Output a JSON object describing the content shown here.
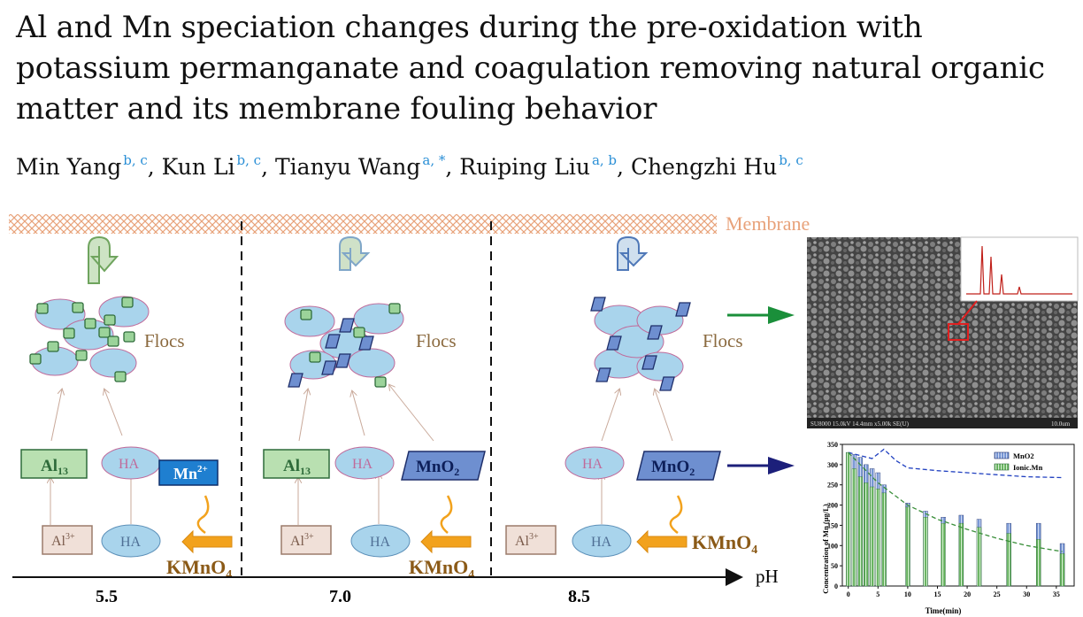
{
  "paper": {
    "title": "Al and Mn speciation changes during the pre-oxidation with potassium permanganate and coagulation removing natural organic matter and its membrane fouling behavior",
    "authors": [
      {
        "name": "Min Yang",
        "affil": "b, c"
      },
      {
        "name": "Kun Li",
        "affil": "b, c"
      },
      {
        "name": "Tianyu Wang",
        "affil": "a, *"
      },
      {
        "name": "Ruiping Liu",
        "affil": "a, b"
      },
      {
        "name": "Chengzhi Hu",
        "affil": "b, c"
      }
    ]
  },
  "figure": {
    "membrane_label": "Membrane",
    "flocs_label": "Flocs",
    "ph_label": "pH",
    "ph_values": [
      "5.5",
      "7.0",
      "8.5"
    ],
    "species": {
      "al13": "Al",
      "al13_sub": "13",
      "ha": "HA",
      "mn2": "Mn",
      "mn2_sup": "2+",
      "mno2": "MnO",
      "mno2_sub": "2",
      "al3": "Al",
      "al3_sup": "3+",
      "kmno4": "KMnO",
      "kmno4_sub": "4"
    },
    "sem_caption": "SU8000 15.0kV 14.4mm x5.00k SE(U)",
    "sem_scale": "10.0um",
    "colors": {
      "membrane": "#e8a27a",
      "floc": "#a9d4ec",
      "al": "#9bd39a",
      "mno2": "#6e8fd0",
      "mn2": "#1f7fd0",
      "kmno4": "#8b5a17",
      "arrow_orange": "#f2a21d",
      "green_arrow": "#1a8f3a",
      "navy_arrow": "#1c1f7a"
    }
  },
  "chart_data": {
    "type": "bar",
    "ylabel": "Concentration of Mn (μg/L)",
    "xlabel": "Time(min)",
    "ylim": [
      0,
      350
    ],
    "xlim": [
      -1,
      38
    ],
    "yticks": [
      "0",
      "50",
      "100",
      "150",
      "200",
      "250",
      "300",
      "350"
    ],
    "xticks": [
      "0",
      "5",
      "10",
      "15",
      "20",
      "25",
      "30",
      "35"
    ],
    "legend": [
      "MnO2",
      "Ionic.Mn"
    ],
    "legend_position": "top-right",
    "x": [
      0,
      1,
      2,
      3,
      4,
      5,
      6,
      10,
      13,
      16,
      19,
      22,
      27,
      32,
      36
    ],
    "series": [
      {
        "name": "MnO2",
        "values": [
          330,
          325,
          318,
          300,
          290,
          280,
          250,
          205,
          185,
          170,
          175,
          165,
          155,
          155,
          105
        ]
      },
      {
        "name": "Ionic.Mn",
        "values": [
          330,
          290,
          270,
          255,
          245,
          240,
          230,
          195,
          170,
          155,
          155,
          145,
          130,
          115,
          80
        ]
      }
    ],
    "trend_lines": [
      {
        "series": "MnO2",
        "x": [
          0,
          4,
          6,
          8,
          10,
          15,
          20,
          25,
          30,
          36
        ],
        "y": [
          330,
          315,
          338,
          310,
          292,
          285,
          280,
          275,
          270,
          268
        ]
      },
      {
        "series": "Ionic.Mn",
        "x": [
          0,
          5,
          10,
          15,
          20,
          25,
          30,
          36
        ],
        "y": [
          330,
          255,
          200,
          165,
          140,
          118,
          100,
          85
        ]
      }
    ]
  }
}
